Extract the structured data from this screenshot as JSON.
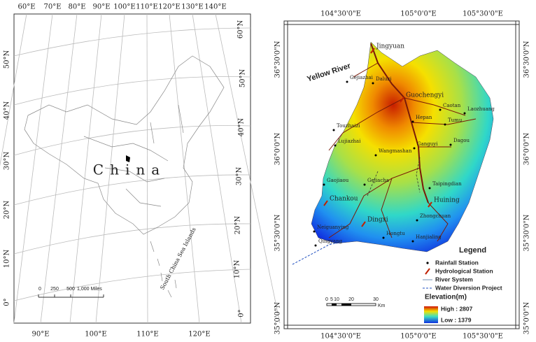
{
  "left_map": {
    "top_longitudes": [
      "60°E",
      "70°E",
      "80°E",
      "90°E",
      "100°E",
      "110°E",
      "120°E",
      "130°E",
      "140°E"
    ],
    "bottom_longitudes": [
      "90°E",
      "100°E",
      "110°E",
      "120°E"
    ],
    "left_latitudes": [
      "50°N",
      "40°N",
      "30°N",
      "20°N",
      "10°N",
      "0°"
    ],
    "right_latitudes": [
      "60°N",
      "50°N",
      "40°N",
      "30°N",
      "20°N",
      "10°N",
      "0°"
    ],
    "country_label": "China",
    "islands_label": "South China Sea Islands",
    "scale_labels": [
      "0",
      "250",
      "500",
      "1,000 Miles"
    ]
  },
  "right_map": {
    "top_longitudes": [
      "104°30'0\"E",
      "105°0'0\"E",
      "105°30'0\"E"
    ],
    "bottom_longitudes": [
      "104°30'0\"E",
      "105°0'0\"E",
      "105°30'0\"E"
    ],
    "left_latitudes": [
      "36°30'0\"N",
      "36°0'0\"N",
      "35°30'0\"N",
      "35°0'0\"N"
    ],
    "right_latitudes": [
      "36°30'0\"N",
      "36°0'0\"N",
      "35°30'0\"N",
      "35°0'0\"N"
    ],
    "river_label": "Yellow River",
    "places": [
      "Jingyuan",
      "Gejiazhai",
      "Daluzi",
      "Guochengyi",
      "Caotan",
      "Laozhuang",
      "Hepan",
      "Tumu",
      "Touzhaizi",
      "Lujiazhai",
      "Dagou",
      "Ganguyi",
      "Wangmashan",
      "Gaojiaou",
      "Gejiacha",
      "Taipingdian",
      "Chankou",
      "Huining",
      "Dingxi",
      "Zhongchuan",
      "Neiguanying",
      "Hongtu",
      "Qingyang",
      "Hanjialing"
    ],
    "legend": {
      "title": "Legend",
      "items": [
        "Rainfall Station",
        "Hydrological Station",
        "River System",
        "Water Diversion Project"
      ],
      "elevation_title": "Elevation(m)",
      "high": "High : 2807",
      "low": "Low : 1379"
    },
    "scale_labels": [
      "0",
      "5",
      "10",
      "20",
      "30",
      "Km"
    ]
  }
}
